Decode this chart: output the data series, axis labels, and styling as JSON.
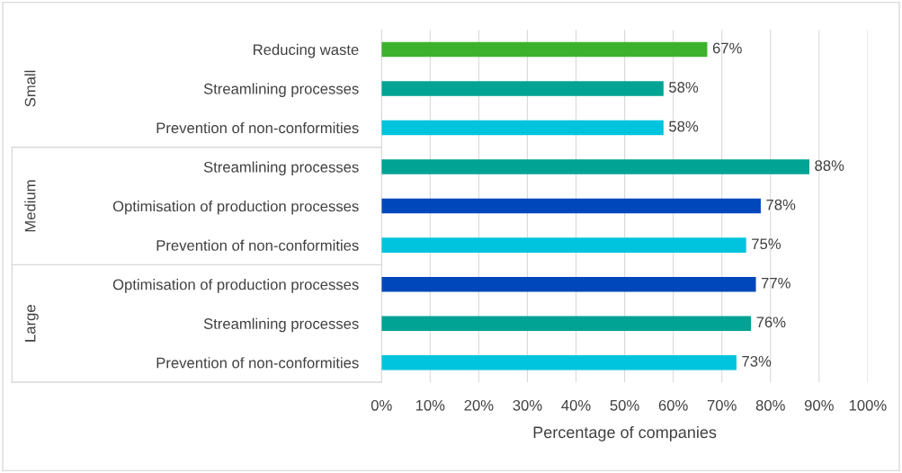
{
  "chart_data": {
    "type": "bar",
    "orientation": "horizontal",
    "xlabel": "Percentage of companies",
    "categories": [
      "Reducing waste",
      "Streamlining processes",
      "Prevention of non-conformities",
      "Streamlining processes",
      "Optimisation of production processes",
      "Prevention of non-conformities",
      "Optimisation of production processes",
      "Streamlining processes",
      "Prevention of non-conformities"
    ],
    "values": [
      67,
      58,
      58,
      88,
      78,
      75,
      77,
      76,
      73
    ],
    "colors": [
      "#3cb22c",
      "#00a394",
      "#00c4de",
      "#00a394",
      "#0047bb",
      "#00c4de",
      "#0047bb",
      "#00a394",
      "#00c4de"
    ],
    "value_labels": [
      "67%",
      "58%",
      "58%",
      "88%",
      "78%",
      "75%",
      "77%",
      "76%",
      "73%"
    ],
    "xlim": [
      0,
      100
    ],
    "xticks": [
      {
        "value": 0,
        "label": "0%"
      },
      {
        "value": 10,
        "label": "10%"
      },
      {
        "value": 20,
        "label": "20%"
      },
      {
        "value": 30,
        "label": "30%"
      },
      {
        "value": 40,
        "label": "40%"
      },
      {
        "value": 50,
        "label": "50%"
      },
      {
        "value": 60,
        "label": "60%"
      },
      {
        "value": 70,
        "label": "70%"
      },
      {
        "value": 80,
        "label": "80%"
      },
      {
        "value": 90,
        "label": "90%"
      },
      {
        "value": 100,
        "label": "100%"
      }
    ],
    "grid": "x",
    "annotations": [
      "Small",
      "Medium",
      "Large"
    ]
  }
}
